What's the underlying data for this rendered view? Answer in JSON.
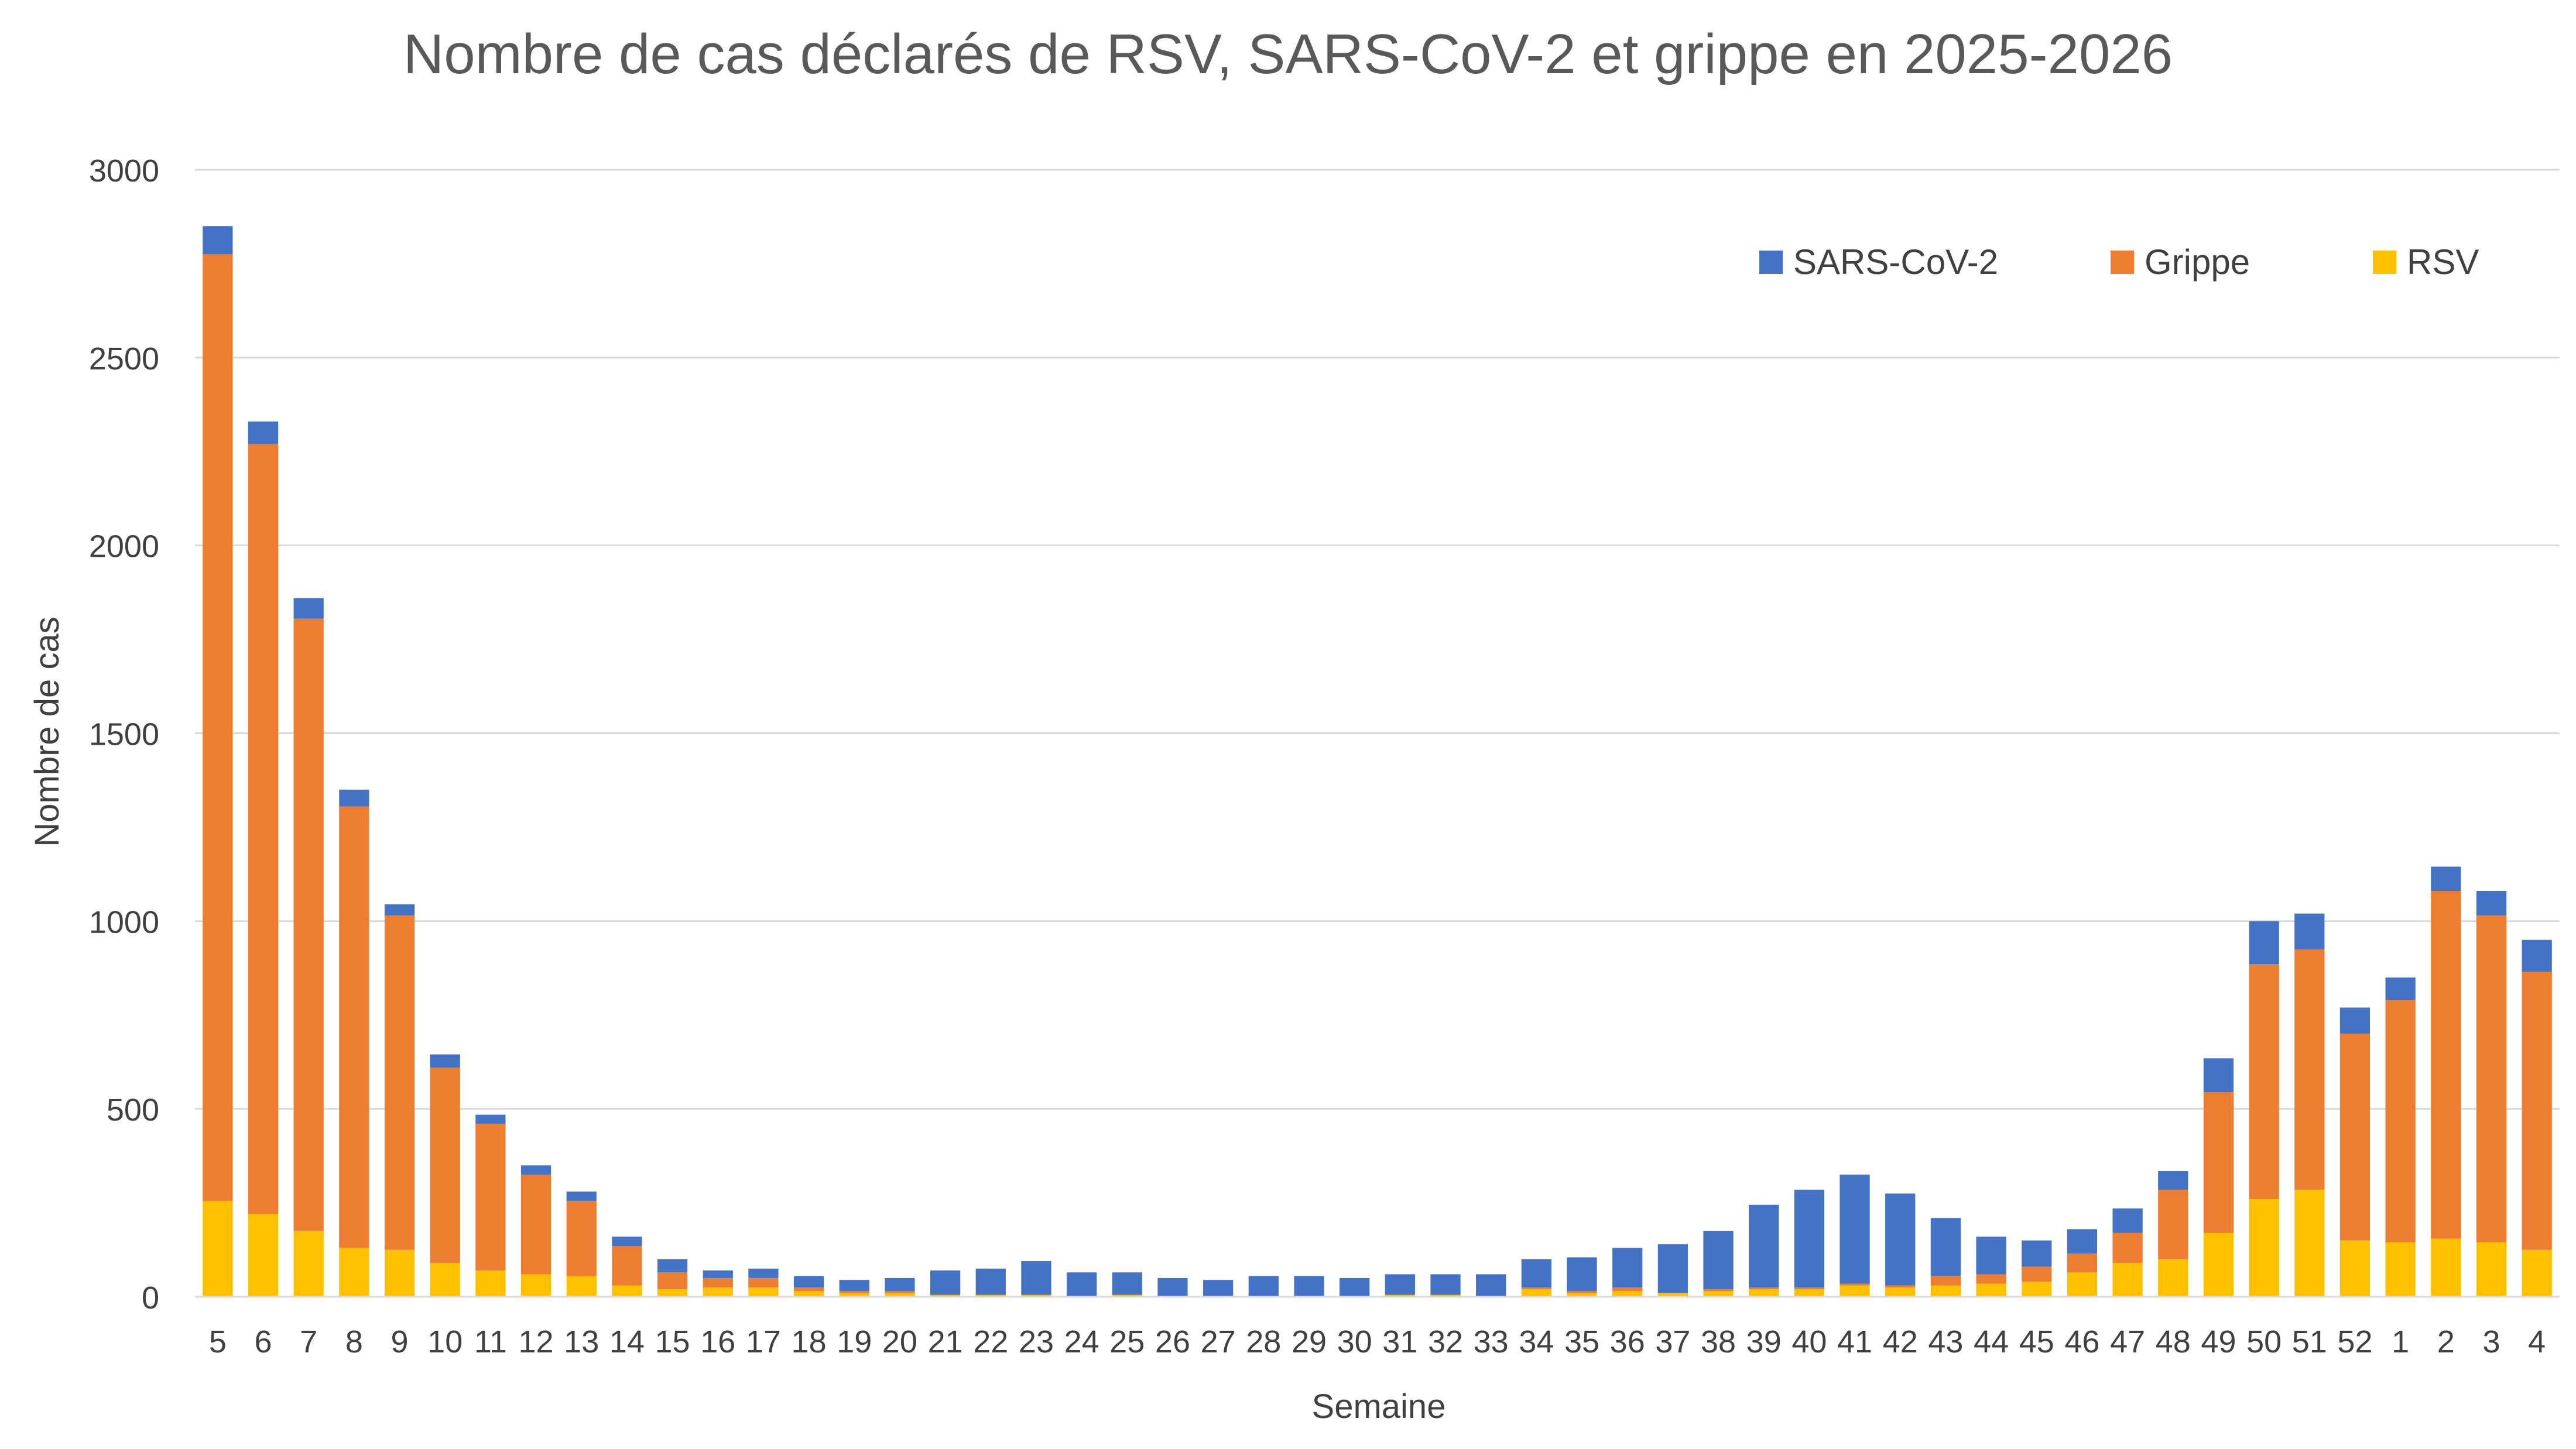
{
  "chart_data": {
    "type": "bar",
    "stacked": true,
    "title": "Nombre de cas déclarés de RSV, SARS-CoV-2 et grippe en 2025-2026",
    "xlabel": "Semaine",
    "ylabel": "Nombre de cas",
    "ylim": [
      0,
      3000
    ],
    "yticks": [
      0,
      500,
      1000,
      1500,
      2000,
      2500,
      3000
    ],
    "grid": true,
    "legend_position": "top-right",
    "categories": [
      "5",
      "6",
      "7",
      "8",
      "9",
      "10",
      "11",
      "12",
      "13",
      "14",
      "15",
      "16",
      "17",
      "18",
      "19",
      "20",
      "21",
      "22",
      "23",
      "24",
      "25",
      "26",
      "27",
      "28",
      "29",
      "30",
      "31",
      "32",
      "33",
      "34",
      "35",
      "36",
      "37",
      "38",
      "39",
      "40",
      "41",
      "42",
      "43",
      "44",
      "45",
      "46",
      "47",
      "48",
      "49",
      "50",
      "51",
      "52",
      "1",
      "2",
      "3",
      "4"
    ],
    "series": [
      {
        "name": "RSV",
        "color": "#FFC000",
        "values": [
          255,
          220,
          175,
          130,
          125,
          90,
          70,
          60,
          55,
          30,
          20,
          25,
          25,
          15,
          10,
          10,
          5,
          5,
          5,
          0,
          5,
          0,
          0,
          0,
          0,
          0,
          5,
          5,
          0,
          20,
          10,
          15,
          10,
          15,
          20,
          20,
          30,
          25,
          30,
          35,
          40,
          65,
          90,
          100,
          170,
          260,
          285,
          150,
          145,
          155,
          145,
          125
        ]
      },
      {
        "name": "Grippe",
        "color": "#ED7D31",
        "values": [
          2520,
          2050,
          1630,
          1175,
          890,
          520,
          390,
          265,
          200,
          105,
          45,
          25,
          25,
          10,
          5,
          5,
          0,
          0,
          0,
          0,
          0,
          0,
          0,
          0,
          0,
          0,
          0,
          0,
          0,
          5,
          5,
          10,
          0,
          5,
          5,
          5,
          5,
          5,
          25,
          25,
          40,
          50,
          80,
          185,
          375,
          625,
          640,
          550,
          645,
          925,
          870,
          740
        ]
      },
      {
        "name": "SARS-CoV-2",
        "color": "#4472C4",
        "values": [
          75,
          60,
          55,
          45,
          30,
          35,
          25,
          25,
          25,
          25,
          35,
          20,
          25,
          30,
          30,
          35,
          65,
          70,
          90,
          65,
          60,
          50,
          45,
          55,
          55,
          50,
          55,
          55,
          60,
          75,
          90,
          105,
          130,
          155,
          220,
          260,
          290,
          245,
          155,
          100,
          70,
          65,
          65,
          50,
          90,
          115,
          95,
          70,
          60,
          65,
          65,
          85
        ]
      }
    ],
    "legend": [
      "SARS-CoV-2",
      "Grippe",
      "RSV"
    ]
  }
}
